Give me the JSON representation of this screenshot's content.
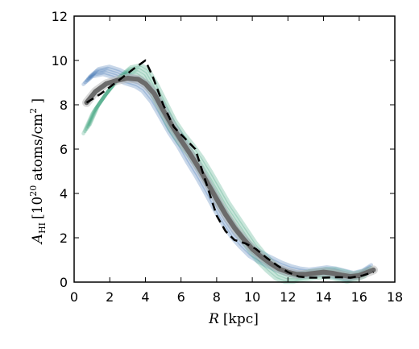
{
  "chart_data": {
    "type": "line",
    "title": "",
    "xlabel": {
      "symbol": "R",
      "rest": "[kpc]"
    },
    "ylabel": {
      "symbol": "A",
      "subscript": "HI",
      "pre": "[10",
      "exponent": "20",
      "mid": " atoms/cm",
      "exponent2": "2",
      "post": " ]"
    },
    "xlim": [
      0,
      18
    ],
    "ylim": [
      0,
      12
    ],
    "xticks": [
      0,
      2,
      4,
      6,
      8,
      10,
      12,
      14,
      16,
      18
    ],
    "yticks": [
      0,
      2,
      4,
      6,
      8,
      10,
      12
    ],
    "grid": false,
    "legend": "none",
    "series": [
      {
        "style": "band",
        "color": "#3a6fb0",
        "x": [
          0.7,
          1.2,
          1.8,
          2.4,
          3.0,
          3.6,
          4.0,
          4.5,
          5.0,
          5.5,
          6.0,
          6.5,
          7.0,
          7.5,
          8.0,
          8.5,
          9.0,
          9.5,
          10.0,
          10.5,
          11.0,
          11.5,
          12.0,
          12.5,
          13.0,
          13.5,
          14.0,
          14.5,
          15.0,
          15.5,
          16.0,
          16.5
        ],
        "y": [
          9.1,
          9.45,
          9.55,
          9.4,
          9.15,
          9.0,
          8.8,
          8.3,
          7.6,
          6.9,
          6.3,
          5.6,
          4.95,
          4.25,
          3.5,
          2.8,
          2.2,
          1.75,
          1.35,
          1.1,
          0.9,
          0.7,
          0.55,
          0.45,
          0.4,
          0.45,
          0.5,
          0.45,
          0.35,
          0.25,
          0.35,
          0.6
        ],
        "spread": 0.22
      },
      {
        "style": "band",
        "color": "#3aa07a",
        "x": [
          0.7,
          1.2,
          1.8,
          2.4,
          3.0,
          3.6,
          4.0,
          4.5,
          5.0,
          5.5,
          6.0,
          6.5,
          7.0,
          7.5,
          8.0,
          8.5,
          9.0,
          9.5,
          10.0,
          10.5,
          11.0,
          11.5,
          12.0,
          12.5,
          13.0,
          13.5,
          14.0,
          14.5,
          15.0,
          15.5,
          16.0,
          16.5
        ],
        "y": [
          6.9,
          7.8,
          8.5,
          9.1,
          9.5,
          9.6,
          9.4,
          8.7,
          7.9,
          7.1,
          6.5,
          6.0,
          5.45,
          4.8,
          4.1,
          3.4,
          2.8,
          2.2,
          1.6,
          1.1,
          0.7,
          0.35,
          0.2,
          0.2,
          0.3,
          0.35,
          0.4,
          0.4,
          0.3,
          0.2,
          0.3,
          0.45
        ],
        "spread": 0.25
      },
      {
        "style": "thick",
        "color": "#6b6b6b",
        "x": [
          0.7,
          1.2,
          1.8,
          2.4,
          3.0,
          3.6,
          4.0,
          4.5,
          5.0,
          5.5,
          6.0,
          6.5,
          7.0,
          7.5,
          8.0,
          8.5,
          9.0,
          9.5,
          10.0,
          10.5,
          11.0,
          11.5,
          12.0,
          12.5,
          13.0,
          13.5,
          14.0,
          14.5,
          15.0,
          15.5,
          16.0,
          16.5,
          16.8
        ],
        "y": [
          8.1,
          8.6,
          8.95,
          9.1,
          9.2,
          9.15,
          8.95,
          8.5,
          7.75,
          7.05,
          6.4,
          5.8,
          5.15,
          4.45,
          3.75,
          3.05,
          2.45,
          1.95,
          1.5,
          1.15,
          0.85,
          0.6,
          0.45,
          0.35,
          0.35,
          0.4,
          0.45,
          0.4,
          0.32,
          0.25,
          0.3,
          0.45,
          0.55
        ]
      },
      {
        "style": "dashed",
        "color": "#000000",
        "x": [
          0.7,
          1.5,
          2.5,
          3.3,
          4.0,
          4.4,
          5.0,
          5.6,
          6.2,
          6.8,
          7.2,
          7.6,
          8.0,
          8.5,
          9.0,
          9.6,
          10.2,
          10.8,
          11.4,
          12.0,
          12.6,
          13.2,
          14.0,
          14.8,
          15.5,
          16.2,
          16.8
        ],
        "y": [
          8.1,
          8.5,
          9.1,
          9.6,
          10.0,
          9.3,
          8.0,
          7.0,
          6.5,
          6.0,
          5.0,
          4.0,
          3.0,
          2.3,
          1.9,
          1.75,
          1.5,
          1.1,
          0.75,
          0.45,
          0.25,
          0.2,
          0.2,
          0.22,
          0.2,
          0.3,
          0.45
        ]
      }
    ]
  }
}
